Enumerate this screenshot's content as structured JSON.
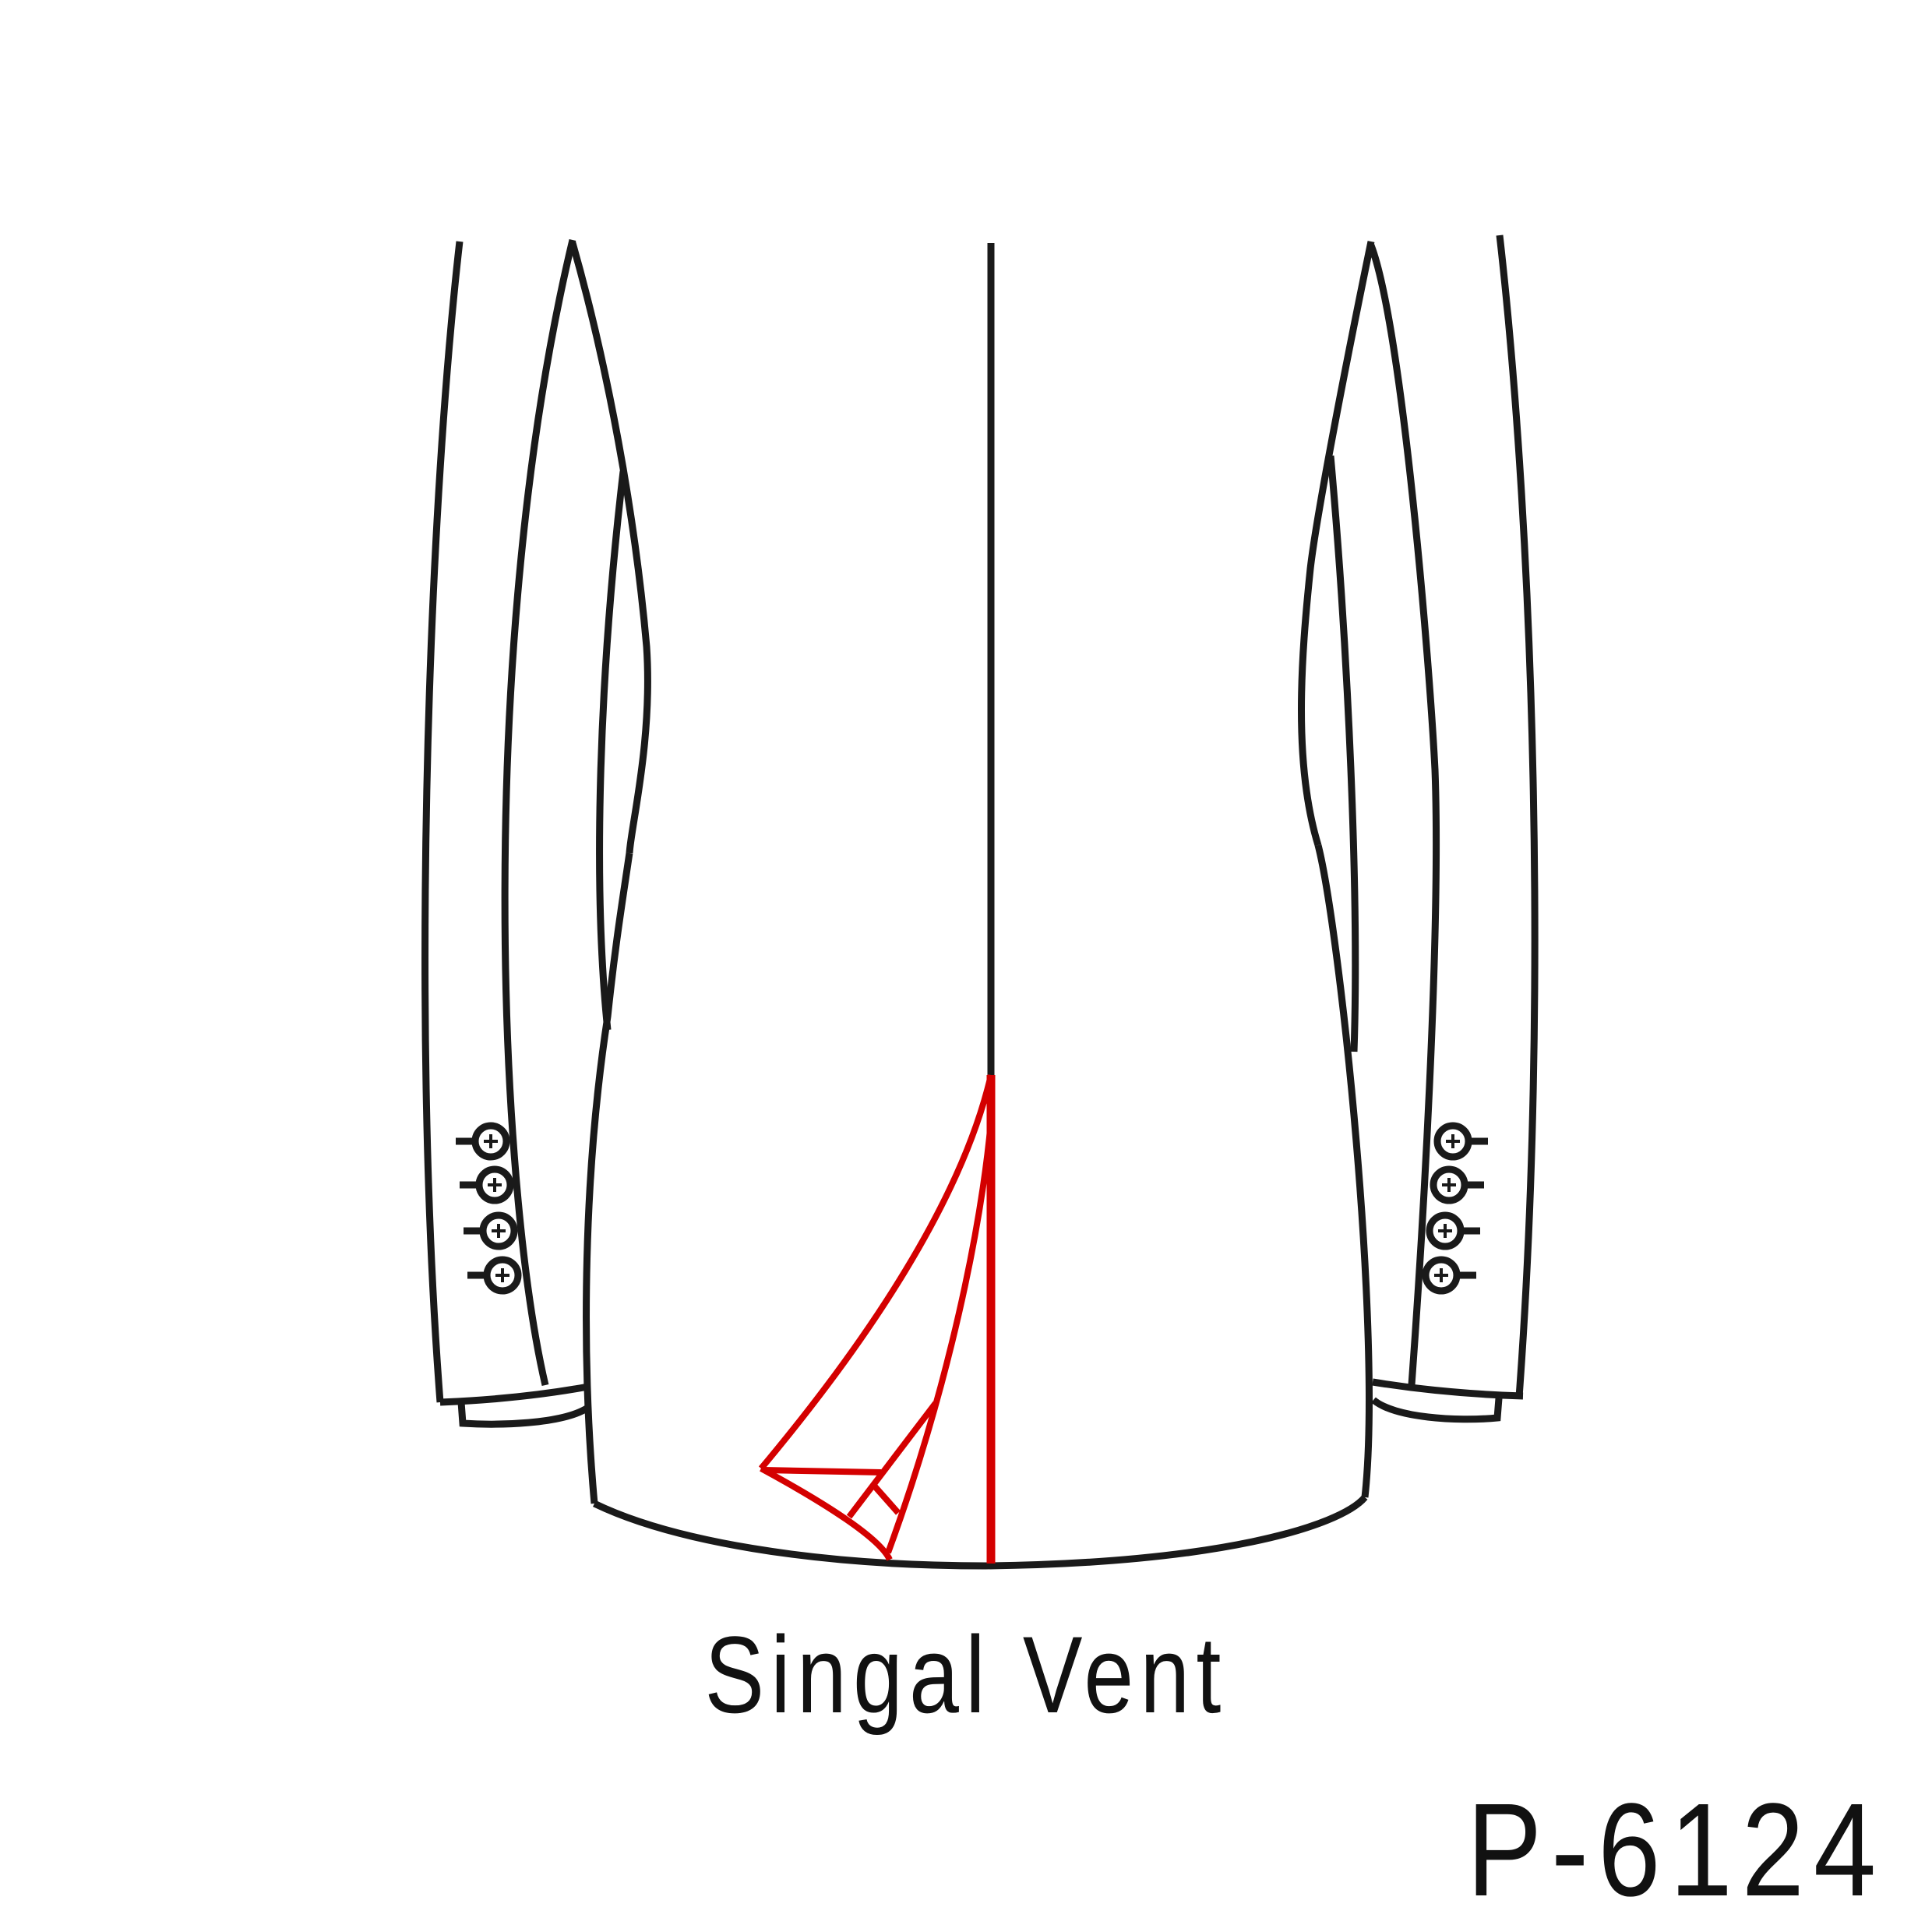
{
  "caption": "Singal Vent",
  "code": "P-6124",
  "colors": {
    "line": "#1a1a1a",
    "vent_highlight": "#d40000",
    "background": "#ffffff"
  },
  "sleeve_buttons": {
    "left_count": 4,
    "right_count": 4
  }
}
